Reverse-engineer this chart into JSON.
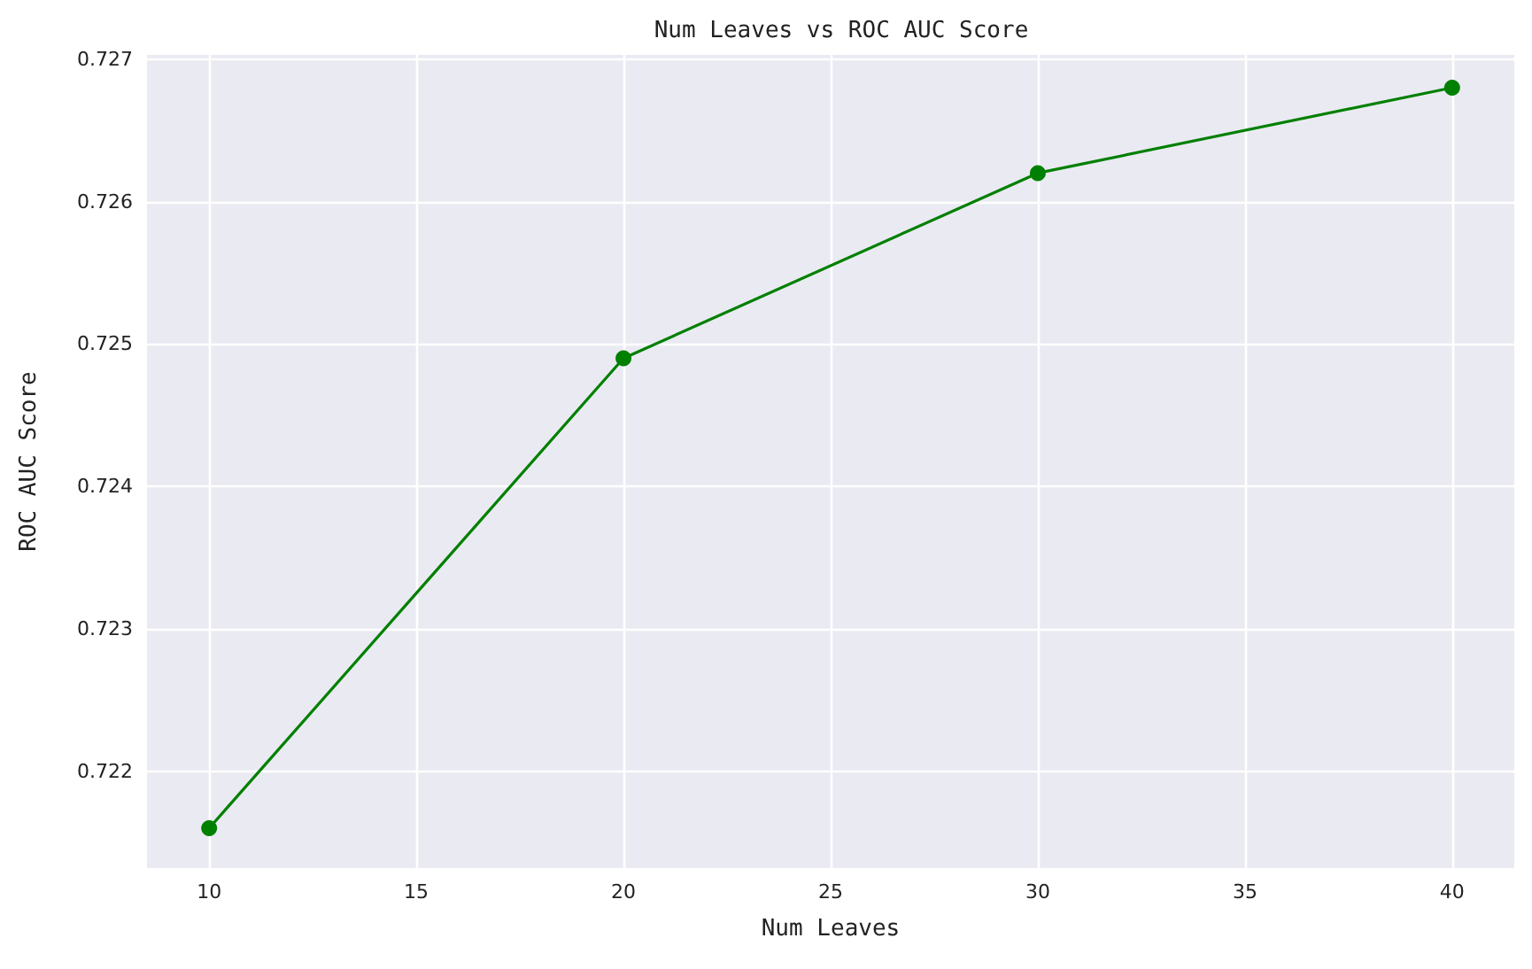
{
  "chart_data": {
    "type": "line",
    "title": "Num Leaves vs ROC AUC Score",
    "xlabel": "Num Leaves",
    "ylabel": "ROC AUC Score",
    "x": [
      10,
      20,
      30,
      40
    ],
    "series": [
      {
        "color": "#008000",
        "values": [
          0.7216,
          0.7249,
          0.7262,
          0.7268
        ]
      }
    ],
    "xlim": [
      8.5,
      41.5
    ],
    "xticks": [
      10,
      15,
      20,
      25,
      30,
      35,
      40
    ],
    "ylim": [
      0.72132,
      0.72703
    ],
    "yticks": [
      0.722,
      0.723,
      0.724,
      0.725,
      0.726,
      0.727
    ],
    "grid": true,
    "marker": "circle",
    "line_style": "solid"
  }
}
